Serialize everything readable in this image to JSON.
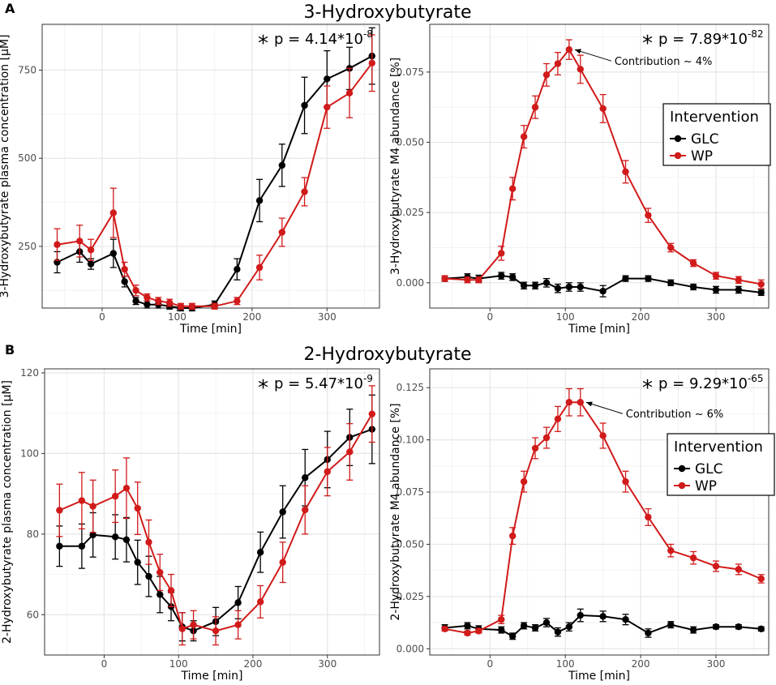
{
  "colors": {
    "GLC": "#000000",
    "WP": "#d11a1a",
    "grid": "#e6e6e6",
    "grid_minor": "#f2f2f2",
    "frame": "#333333"
  },
  "chart_data": [
    {
      "id": "A-left",
      "panel_letter": "A",
      "section_title": "3-Hydroxybutyrate",
      "type": "line",
      "title": "",
      "xlabel": "Time [min]",
      "ylabel": "3-Hydroxybutyrate plasma concentration [µM]",
      "xlim": [
        -80,
        370
      ],
      "ylim": [
        75,
        880
      ],
      "xticks": [
        0,
        100,
        200,
        300
      ],
      "yticks": [
        250,
        500,
        750
      ],
      "yticklabels": [
        "250",
        "500",
        "750"
      ],
      "pvalue_star": "*",
      "pvalue_text": "p = 4.14*10",
      "pvalue_exp": "-8",
      "series": [
        {
          "name": "GLC",
          "x": [
            -60,
            -30,
            -15,
            15,
            30,
            45,
            60,
            75,
            90,
            105,
            120,
            150,
            180,
            210,
            240,
            270,
            300,
            330,
            360
          ],
          "y": [
            205,
            235,
            200,
            230,
            150,
            95,
            85,
            85,
            80,
            75,
            75,
            85,
            185,
            380,
            480,
            650,
            725,
            755,
            790
          ],
          "err": [
            30,
            30,
            15,
            40,
            15,
            10,
            10,
            10,
            8,
            8,
            8,
            10,
            30,
            60,
            60,
            80,
            80,
            60,
            80
          ]
        },
        {
          "name": "WP",
          "x": [
            -60,
            -30,
            -15,
            15,
            30,
            45,
            60,
            75,
            90,
            105,
            120,
            150,
            180,
            210,
            240,
            270,
            300,
            330,
            360
          ],
          "y": [
            255,
            265,
            240,
            345,
            185,
            125,
            105,
            95,
            90,
            80,
            80,
            80,
            95,
            190,
            290,
            405,
            645,
            685,
            770
          ],
          "err": [
            45,
            45,
            30,
            70,
            20,
            15,
            10,
            10,
            10,
            8,
            8,
            8,
            10,
            35,
            40,
            40,
            60,
            70,
            80
          ]
        }
      ]
    },
    {
      "id": "A-right",
      "type": "line",
      "title": "",
      "xlabel": "Time [min]",
      "ylabel": "3-Hydroxybutyrate M4 abundance [%]",
      "xlim": [
        -80,
        370
      ],
      "ylim": [
        -0.009,
        0.092
      ],
      "xticks": [
        0,
        100,
        200,
        300
      ],
      "yticks": [
        0,
        0.025,
        0.05,
        0.075
      ],
      "yticklabels": [
        "0.000",
        "0.025",
        "0.050",
        "0.075"
      ],
      "pvalue_star": "*",
      "pvalue_text": "p = 7.89*10",
      "pvalue_exp": "-82",
      "annotation": {
        "text": "Contribution ~ 4%",
        "x": 105,
        "y": 0.083
      },
      "legend": {
        "title": "Intervention",
        "entries": [
          "GLC",
          "WP"
        ]
      },
      "series": [
        {
          "name": "GLC",
          "x": [
            -60,
            -30,
            -15,
            15,
            30,
            45,
            60,
            75,
            90,
            105,
            120,
            150,
            180,
            210,
            240,
            270,
            300,
            330,
            360
          ],
          "y": [
            0.0015,
            0.002,
            0.0015,
            0.0025,
            0.002,
            -0.001,
            -0.001,
            0.0,
            -0.002,
            -0.0015,
            -0.0015,
            -0.003,
            0.0015,
            0.0015,
            0.0,
            -0.0015,
            -0.0025,
            -0.0025,
            -0.0035
          ],
          "err": [
            0.001,
            0.0012,
            0.0012,
            0.0012,
            0.0012,
            0.0012,
            0.0012,
            0.0015,
            0.0015,
            0.0015,
            0.0015,
            0.002,
            0.001,
            0.001,
            0.001,
            0.001,
            0.0012,
            0.0012,
            0.001
          ]
        },
        {
          "name": "WP",
          "x": [
            -60,
            -30,
            -15,
            15,
            30,
            45,
            60,
            75,
            90,
            105,
            120,
            150,
            180,
            210,
            240,
            270,
            300,
            330,
            360
          ],
          "y": [
            0.0015,
            0.001,
            0.001,
            0.0105,
            0.0335,
            0.052,
            0.0625,
            0.074,
            0.078,
            0.083,
            0.076,
            0.062,
            0.0395,
            0.024,
            0.0125,
            0.007,
            0.0025,
            0.001,
            -0.0005
          ],
          "err": [
            0.001,
            0.001,
            0.001,
            0.0025,
            0.004,
            0.004,
            0.004,
            0.004,
            0.004,
            0.0035,
            0.005,
            0.005,
            0.004,
            0.0025,
            0.0015,
            0.0012,
            0.0012,
            0.0012,
            0.0015
          ]
        }
      ]
    },
    {
      "id": "B-left",
      "panel_letter": "B",
      "section_title": "2-Hydroxybutyrate",
      "type": "line",
      "title": "",
      "xlabel": "Time [min]",
      "ylabel": "2-Hydroxybutyrate plasma concentration [µM]",
      "xlim": [
        -80,
        370
      ],
      "ylim": [
        50,
        121
      ],
      "xticks": [
        0,
        100,
        200,
        300
      ],
      "yticks": [
        60,
        80,
        100,
        120
      ],
      "yticklabels": [
        "60",
        "80",
        "100",
        "120"
      ],
      "pvalue_star": "*",
      "pvalue_text": "p = 5.47*10",
      "pvalue_exp": "-9",
      "series": [
        {
          "name": "GLC",
          "x": [
            -60,
            -30,
            -15,
            15,
            30,
            45,
            60,
            75,
            90,
            105,
            120,
            150,
            180,
            210,
            240,
            270,
            300,
            330,
            360
          ],
          "y": [
            77,
            77,
            79.8,
            79.3,
            78.6,
            73,
            69.5,
            65,
            62,
            57,
            56,
            58.3,
            63,
            75.5,
            85.5,
            94,
            98.5,
            104,
            106
          ],
          "err": [
            5,
            5.5,
            5.5,
            5.5,
            5.5,
            5.5,
            5,
            4.5,
            3.5,
            3.5,
            2.5,
            3.5,
            4,
            5,
            6.5,
            7,
            7,
            7,
            8.5
          ]
        },
        {
          "name": "WP",
          "x": [
            -60,
            -30,
            -15,
            15,
            30,
            45,
            60,
            75,
            90,
            105,
            120,
            150,
            180,
            210,
            240,
            270,
            300,
            330,
            360
          ],
          "y": [
            85.9,
            88.3,
            86.9,
            89.4,
            91.4,
            86.4,
            78,
            70.5,
            66,
            56.5,
            57.5,
            56,
            57.5,
            63.2,
            73,
            86,
            95.5,
            100.4,
            109.8
          ],
          "err": [
            6.5,
            7,
            6.5,
            6.5,
            7.5,
            6.5,
            5.5,
            4.5,
            4,
            4,
            3.5,
            3.5,
            3.5,
            4,
            5,
            6,
            6,
            7,
            7
          ]
        }
      ]
    },
    {
      "id": "B-right",
      "type": "line",
      "title": "",
      "xlabel": "Time [min]",
      "ylabel": "2-Hydroxybutyrate M4 abundance [%]",
      "xlim": [
        -80,
        370
      ],
      "ylim": [
        -0.003,
        0.134
      ],
      "xticks": [
        0,
        100,
        200,
        300
      ],
      "yticks": [
        0,
        0.025,
        0.05,
        0.075,
        0.1,
        0.125
      ],
      "yticklabels": [
        "0.000",
        "0.025",
        "0.050",
        "0.075",
        "0.100",
        "0.125"
      ],
      "pvalue_star": "*",
      "pvalue_text": "p = 9.29*10",
      "pvalue_exp": "-65",
      "annotation": {
        "text": "Contribution ~ 6%",
        "x": 120,
        "y": 0.118
      },
      "legend": {
        "title": "Intervention",
        "entries": [
          "GLC",
          "WP"
        ]
      },
      "series": [
        {
          "name": "GLC",
          "x": [
            -60,
            -30,
            -15,
            15,
            30,
            45,
            60,
            75,
            90,
            105,
            120,
            150,
            180,
            210,
            240,
            270,
            300,
            330,
            360
          ],
          "y": [
            0.01,
            0.011,
            0.0095,
            0.009,
            0.006,
            0.011,
            0.01,
            0.0125,
            0.008,
            0.0105,
            0.016,
            0.0155,
            0.014,
            0.0075,
            0.0115,
            0.009,
            0.0105,
            0.0105,
            0.0095
          ],
          "err": [
            0.0015,
            0.0015,
            0.0015,
            0.0015,
            0.0015,
            0.0015,
            0.0015,
            0.002,
            0.002,
            0.002,
            0.003,
            0.0025,
            0.0025,
            0.002,
            0.0015,
            0.0015,
            0.001,
            0.001,
            0.001
          ]
        },
        {
          "name": "WP",
          "x": [
            -60,
            -30,
            -15,
            15,
            30,
            45,
            60,
            75,
            90,
            105,
            120,
            150,
            180,
            210,
            240,
            270,
            300,
            330,
            360
          ],
          "y": [
            0.0095,
            0.0075,
            0.0085,
            0.014,
            0.054,
            0.08,
            0.096,
            0.101,
            0.11,
            0.118,
            0.118,
            0.102,
            0.08,
            0.063,
            0.047,
            0.0435,
            0.0395,
            0.038,
            0.0335
          ],
          "err": [
            0.001,
            0.001,
            0.001,
            0.002,
            0.004,
            0.005,
            0.005,
            0.005,
            0.006,
            0.0065,
            0.0065,
            0.006,
            0.005,
            0.004,
            0.003,
            0.003,
            0.0025,
            0.0025,
            0.002
          ]
        }
      ]
    }
  ]
}
